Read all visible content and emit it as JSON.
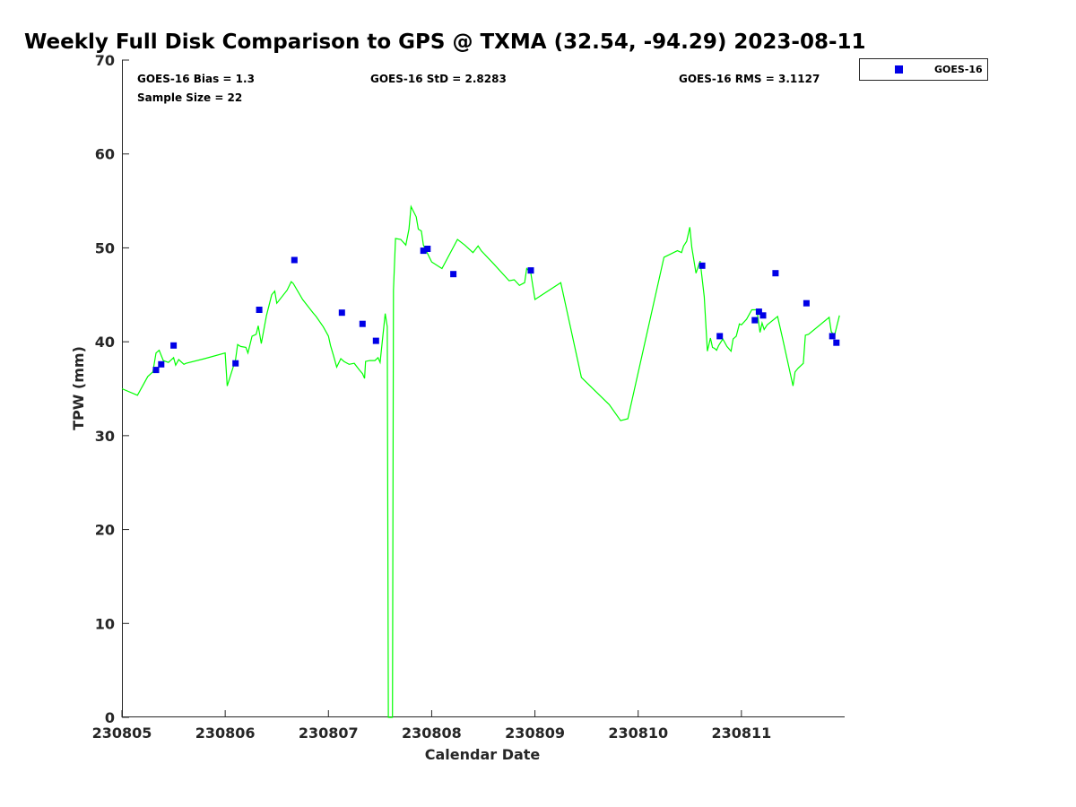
{
  "chart_data": {
    "type": "line",
    "title": "Weekly Full Disk Comparison to GPS @ TXMA (32.54, -94.29) 2023-08-11",
    "xlabel": "Calendar Date",
    "ylabel": "TPW (mm)",
    "xlim": [
      230805,
      230812
    ],
    "ylim": [
      0,
      70
    ],
    "x_ticks": [
      230805,
      230806,
      230807,
      230808,
      230809,
      230810,
      230811
    ],
    "x_tick_labels": [
      "230805",
      "230806",
      "230807",
      "230808",
      "230809",
      "230810",
      "230811"
    ],
    "y_ticks": [
      0,
      10,
      20,
      30,
      40,
      50,
      60,
      70
    ],
    "y_tick_labels": [
      "0",
      "10",
      "20",
      "30",
      "40",
      "50",
      "60",
      "70"
    ],
    "grid": false,
    "legend": {
      "position": "outside-top-right",
      "entries": [
        "GOES-16"
      ]
    },
    "stats": {
      "bias": "GOES-16 Bias = 1.3",
      "sample_size": "Sample Size = 22",
      "std": "GOES-16 StD = 2.8283",
      "rms": "GOES-16 RMS = 3.1127"
    },
    "series": [
      {
        "role": "gps",
        "color": "#00ff00",
        "style": "line",
        "x": [
          230805.0,
          230805.15,
          230805.25,
          230805.3,
          230805.33,
          230805.36,
          230805.4,
          230805.45,
          230805.5,
          230805.52,
          230805.55,
          230805.6,
          230805.62,
          230805.8,
          230806.0,
          230806.02,
          230806.1,
          230806.12,
          230806.15,
          230806.2,
          230806.22,
          230806.26,
          230806.3,
          230806.32,
          230806.35,
          230806.4,
          230806.45,
          230806.48,
          230806.5,
          230806.6,
          230806.64,
          230806.66,
          230806.75,
          230806.85,
          230806.88,
          230806.95,
          230806.98,
          230807.0,
          230807.02,
          230807.05,
          230807.08,
          230807.12,
          230807.15,
          230807.2,
          230807.25,
          230807.3,
          230807.33,
          230807.35,
          230807.36,
          230807.4,
          230807.45,
          230807.48,
          230807.5,
          230807.55,
          230807.57,
          230807.58,
          230807.6,
          230807.62,
          230807.63,
          230807.65,
          230807.7,
          230807.75,
          230807.78,
          230807.8,
          230807.85,
          230807.87,
          230807.9,
          230807.92,
          230808.0,
          230808.1,
          230808.25,
          230808.32,
          230808.4,
          230808.45,
          230808.48,
          230808.6,
          230808.75,
          230808.8,
          230808.85,
          230808.9,
          230808.92,
          230808.96,
          230809.0,
          230809.25,
          230809.45,
          230809.72,
          230809.83,
          230809.9,
          230810.25,
          230810.38,
          230810.42,
          230810.44,
          230810.47,
          230810.5,
          230810.52,
          230810.56,
          230810.6,
          230810.64,
          230810.67,
          230810.7,
          230810.72,
          230810.74,
          230810.76,
          230810.78,
          230810.82,
          230810.86,
          230810.9,
          230810.92,
          230810.95,
          230810.98,
          230811.0,
          230811.05,
          230811.1,
          230811.15,
          230811.18,
          230811.2,
          230811.22,
          230811.25,
          230811.35,
          230811.4,
          230811.5,
          230811.52,
          230811.55,
          230811.6,
          230811.62,
          230811.65,
          230811.85,
          230811.87,
          230811.9,
          230811.95
        ],
        "y": [
          35.0,
          34.3,
          36.3,
          36.8,
          38.8,
          39.1,
          38.0,
          37.8,
          38.3,
          37.5,
          38.1,
          37.6,
          37.7,
          38.2,
          38.8,
          35.3,
          38.1,
          39.7,
          39.5,
          39.4,
          38.8,
          40.6,
          40.8,
          41.7,
          39.8,
          42.8,
          45.0,
          45.4,
          44.1,
          45.5,
          46.4,
          46.2,
          44.5,
          43.1,
          42.7,
          41.6,
          41.0,
          40.6,
          39.6,
          38.5,
          37.3,
          38.2,
          37.9,
          37.6,
          37.7,
          37.0,
          36.6,
          36.1,
          37.9,
          38.0,
          38.0,
          38.3,
          37.8,
          43.0,
          41.6,
          0.0,
          0.0,
          0.0,
          45.5,
          51.0,
          50.9,
          50.3,
          52.0,
          54.4,
          53.3,
          52.0,
          51.8,
          50.3,
          48.5,
          47.8,
          50.9,
          50.3,
          49.5,
          50.2,
          49.7,
          48.3,
          46.5,
          46.6,
          46.0,
          46.3,
          47.8,
          47.3,
          44.5,
          46.3,
          36.2,
          33.3,
          31.6,
          31.8,
          49.0,
          49.7,
          49.5,
          50.2,
          50.7,
          52.2,
          50.0,
          47.3,
          48.6,
          44.8,
          39.0,
          40.4,
          39.4,
          39.3,
          39.1,
          39.6,
          40.3,
          39.5,
          39.0,
          40.3,
          40.6,
          41.9,
          41.8,
          42.4,
          43.4,
          43.4,
          41.0,
          42.0,
          41.3,
          41.8,
          42.7,
          40.3,
          35.3,
          36.8,
          37.2,
          37.7,
          40.7,
          40.8,
          42.6,
          41.1,
          40.6,
          42.8
        ]
      },
      {
        "name": "GOES-16",
        "color": "#0000e6",
        "style": "markers",
        "x": [
          230805.33,
          230805.38,
          230805.5,
          230806.1,
          230806.33,
          230806.67,
          230807.13,
          230807.33,
          230807.46,
          230807.92,
          230807.96,
          230808.21,
          230808.96,
          230810.62,
          230810.79,
          230811.13,
          230811.17,
          230811.21,
          230811.33,
          230811.63,
          230811.88,
          230811.92
        ],
        "y": [
          37.0,
          37.6,
          39.6,
          37.7,
          43.4,
          48.7,
          43.1,
          41.9,
          40.1,
          49.7,
          49.9,
          47.2,
          47.6,
          48.1,
          40.6,
          42.3,
          43.2,
          42.8,
          47.3,
          44.1,
          40.6,
          39.9
        ]
      }
    ]
  }
}
